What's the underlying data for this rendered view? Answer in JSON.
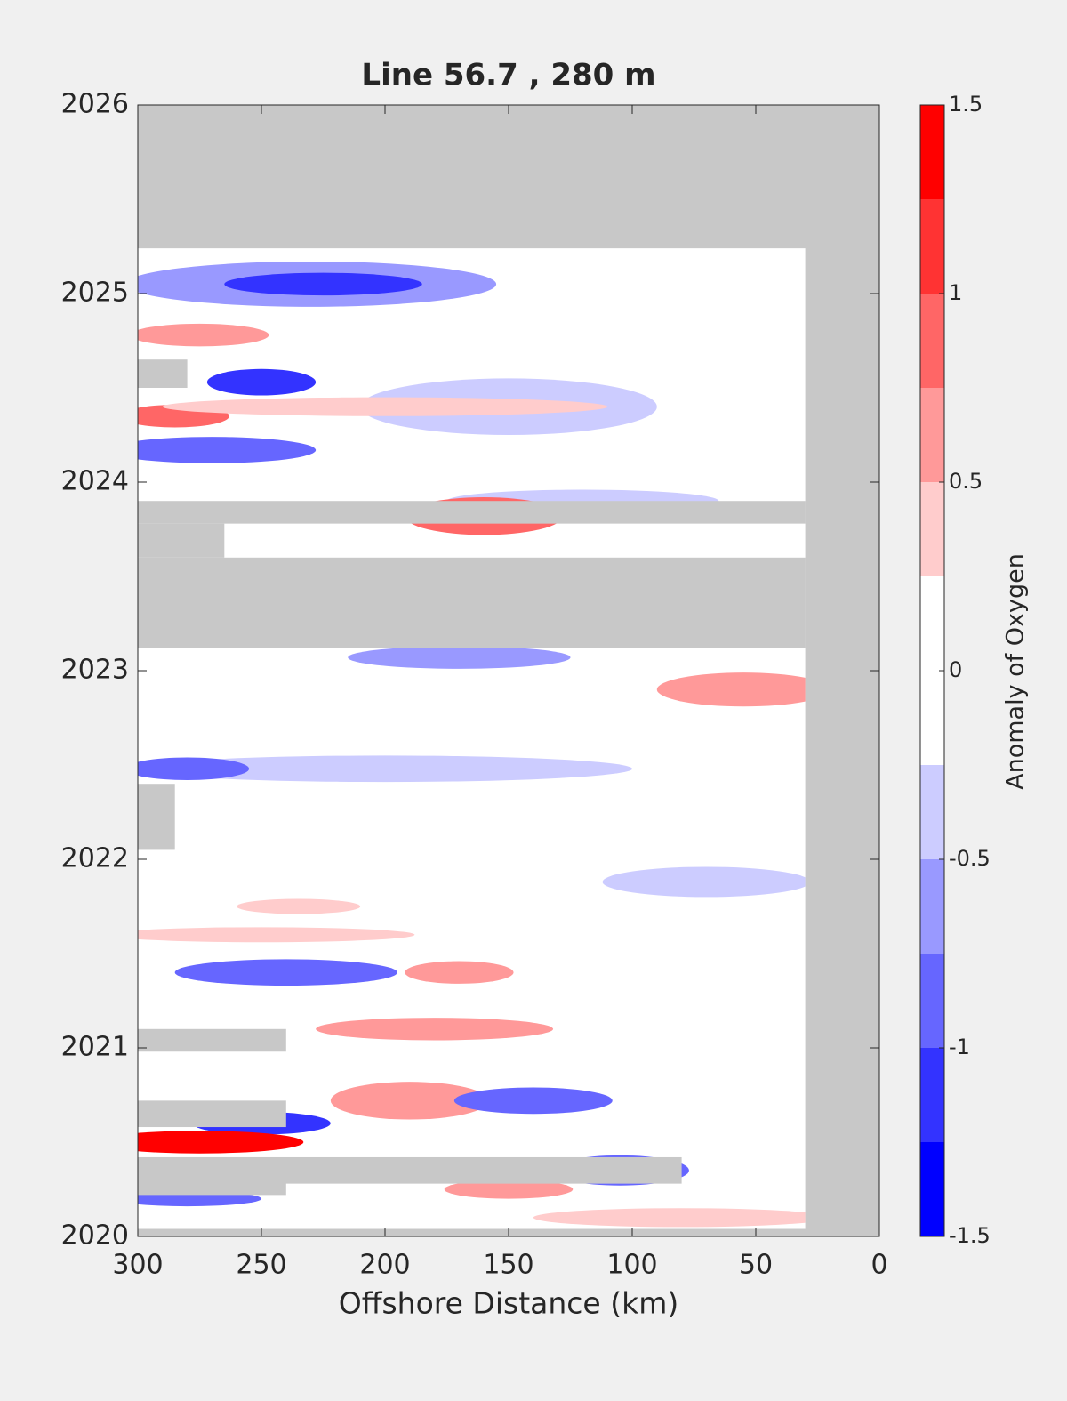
{
  "chart_data": {
    "type": "contour",
    "title": "Line 56.7 , 280 m",
    "xlabel": "Offshore Distance (km)",
    "colorbar_label": "Anomaly of Oxygen",
    "xlim": [
      300,
      0
    ],
    "xticks": [
      300,
      250,
      200,
      150,
      100,
      50,
      0
    ],
    "ylim": [
      2020,
      2026
    ],
    "yticks": [
      2020,
      2021,
      2022,
      2023,
      2024,
      2025,
      2026
    ],
    "clim": [
      -1.5,
      1.5
    ],
    "cticks": [
      -1.5,
      -1,
      -0.5,
      0,
      0.5,
      1,
      1.5
    ],
    "levels": [
      -1.5,
      -1.25,
      -1,
      -0.75,
      -0.5,
      -0.25,
      0,
      0.25,
      0.5,
      0.75,
      1,
      1.25,
      1.5
    ],
    "colors": [
      "#0000ff",
      "#3333ff",
      "#6666ff",
      "#9999ff",
      "#ccccff",
      "#ffffff",
      "#ffffff",
      "#ffcccc",
      "#ff9999",
      "#ff6666",
      "#ff3333",
      "#ff0000"
    ],
    "missing_color": "#c8c8c8",
    "data_extent": [
      300,
      30,
      2020.04,
      2025.24
    ],
    "features": [
      {
        "x": 230,
        "y": 2025.05,
        "rx": 75,
        "ry": 0.12,
        "value": -0.6
      },
      {
        "x": 225,
        "y": 2025.05,
        "rx": 40,
        "ry": 0.06,
        "value": -1.1
      },
      {
        "x": 275,
        "y": 2024.78,
        "rx": 28,
        "ry": 0.06,
        "value": 0.6
      },
      {
        "x": 150,
        "y": 2024.4,
        "rx": 60,
        "ry": 0.15,
        "value": -0.4
      },
      {
        "x": 250,
        "y": 2024.53,
        "rx": 22,
        "ry": 0.07,
        "value": -1.1
      },
      {
        "x": 285,
        "y": 2024.35,
        "rx": 22,
        "ry": 0.06,
        "value": 0.8
      },
      {
        "x": 200,
        "y": 2024.4,
        "rx": 90,
        "ry": 0.05,
        "value": 0.4
      },
      {
        "x": 270,
        "y": 2024.17,
        "rx": 42,
        "ry": 0.07,
        "value": -0.8
      },
      {
        "x": 120,
        "y": 2023.9,
        "rx": 55,
        "ry": 0.06,
        "value": -0.4
      },
      {
        "x": 160,
        "y": 2023.82,
        "rx": 32,
        "ry": 0.1,
        "value": 0.9
      },
      {
        "x": 170,
        "y": 2023.07,
        "rx": 45,
        "ry": 0.06,
        "value": -0.6
      },
      {
        "x": 55,
        "y": 2022.9,
        "rx": 35,
        "ry": 0.09,
        "value": 0.6
      },
      {
        "x": 200,
        "y": 2022.48,
        "rx": 100,
        "ry": 0.07,
        "value": -0.4
      },
      {
        "x": 280,
        "y": 2022.48,
        "rx": 25,
        "ry": 0.06,
        "value": -0.8
      },
      {
        "x": 70,
        "y": 2021.88,
        "rx": 42,
        "ry": 0.08,
        "value": -0.4
      },
      {
        "x": 250,
        "y": 2021.6,
        "rx": 62,
        "ry": 0.04,
        "value": 0.4
      },
      {
        "x": 235,
        "y": 2021.75,
        "rx": 25,
        "ry": 0.04,
        "value": 0.4
      },
      {
        "x": 240,
        "y": 2021.4,
        "rx": 45,
        "ry": 0.07,
        "value": -0.8
      },
      {
        "x": 170,
        "y": 2021.4,
        "rx": 22,
        "ry": 0.06,
        "value": 0.5
      },
      {
        "x": 180,
        "y": 2021.1,
        "rx": 48,
        "ry": 0.06,
        "value": 0.5
      },
      {
        "x": 190,
        "y": 2020.72,
        "rx": 32,
        "ry": 0.1,
        "value": 0.6
      },
      {
        "x": 140,
        "y": 2020.72,
        "rx": 32,
        "ry": 0.07,
        "value": -0.8
      },
      {
        "x": 250,
        "y": 2020.6,
        "rx": 28,
        "ry": 0.06,
        "value": -1.2
      },
      {
        "x": 275,
        "y": 2020.5,
        "rx": 42,
        "ry": 0.06,
        "value": 1.4
      },
      {
        "x": 105,
        "y": 2020.35,
        "rx": 28,
        "ry": 0.08,
        "value": -0.9
      },
      {
        "x": 150,
        "y": 2020.25,
        "rx": 26,
        "ry": 0.05,
        "value": 0.6
      },
      {
        "x": 80,
        "y": 2020.1,
        "rx": 60,
        "ry": 0.05,
        "value": 0.4
      },
      {
        "x": 280,
        "y": 2020.2,
        "rx": 30,
        "ry": 0.04,
        "value": -0.9
      }
    ],
    "missing": [
      [
        300,
        30,
        2023.12,
        2023.6
      ],
      [
        300,
        30,
        2023.78,
        2023.9
      ],
      [
        300,
        265,
        2023.6,
        2023.78
      ],
      [
        300,
        280,
        2024.5,
        2024.65
      ],
      [
        300,
        285,
        2022.05,
        2022.4
      ],
      [
        300,
        240,
        2020.98,
        2021.1
      ],
      [
        300,
        240,
        2020.58,
        2020.72
      ],
      [
        300,
        80,
        2020.28,
        2020.42
      ],
      [
        300,
        240,
        2020.22,
        2020.3
      ]
    ]
  }
}
